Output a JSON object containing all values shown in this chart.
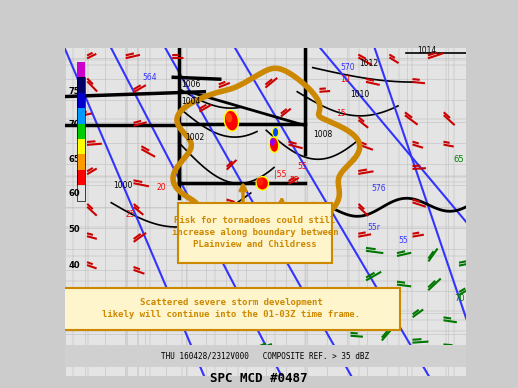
{
  "title": "SPC MCD #0487",
  "bottom_label": "THU 160428/2312V000   COMPOSITE REF. > 35 dBZ",
  "bg_color": "#d0d0d0",
  "map_bg": "#e8e8e8",
  "figsize": [
    5.18,
    3.88
  ],
  "dpi": 100,
  "annotation1": "Risk for tornadoes could still\nincrease along boundary between\nPLainview and Childress",
  "annotation2": "Scattered severe storm development\nlikely will continue into the 01-03Z time frame.",
  "ann1_box_color": "#cc8800",
  "ann2_box_color": "#cc8800",
  "ann_text_color": "#cc8800",
  "mcd_outline_color": "#cc8800",
  "blue_line_color": "#3333ff",
  "black_line_color": "#111111",
  "red_barb_color": "#cc0000",
  "green_barb_color": "#007700",
  "pressure_label_color": "#111111",
  "height_label_color": "#3333ff",
  "scale_bar_colors": [
    "#cc00cc",
    "#cc00cc",
    "#000066",
    "#000066",
    "#0000cc",
    "#0000cc",
    "#0099ff",
    "#0099ff",
    "#00cc00",
    "#00cc00",
    "#ffff00",
    "#ffff00",
    "#ff9900",
    "#ff9900",
    "#ff0000",
    "#ff0000"
  ]
}
